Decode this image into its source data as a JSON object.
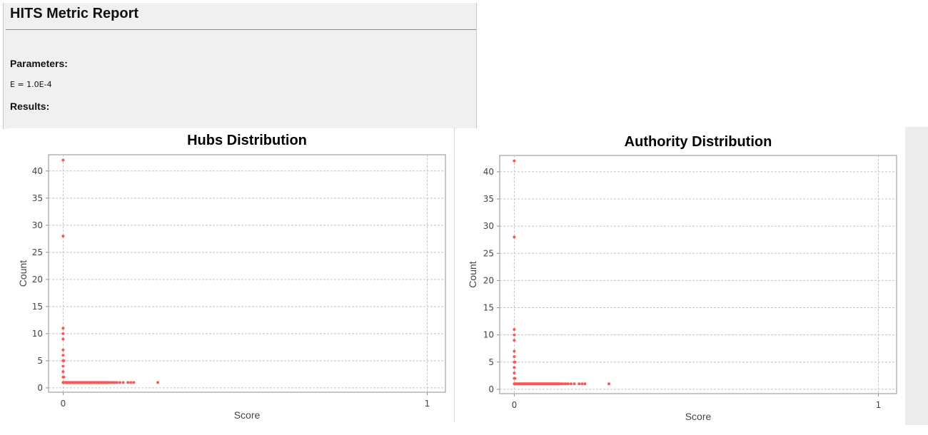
{
  "report": {
    "title": "HITS Metric Report",
    "parameters_heading": "Parameters:",
    "parameter_line": "E = 1.0E-4",
    "results_heading": "Results:"
  },
  "colors": {
    "point": "#ff5555",
    "grid": "#c4c4c4",
    "plot_border": "#8f8f8f",
    "panel_bg": "#f0f0f0"
  },
  "chart_data": [
    {
      "type": "scatter",
      "title": "Hubs Distribution",
      "xlabel": "Score",
      "ylabel": "Count",
      "xlim": [
        -0.04,
        1.05
      ],
      "ylim": [
        -0.8,
        43
      ],
      "xticks": [
        0,
        1
      ],
      "yticks": [
        0,
        5,
        10,
        15,
        20,
        25,
        30,
        35,
        40
      ],
      "grid": true,
      "points": [
        {
          "x": 0.0,
          "y": 42
        },
        {
          "x": 0.0,
          "y": 28
        },
        {
          "x": 0.0,
          "y": 11
        },
        {
          "x": 0.0,
          "y": 10
        },
        {
          "x": 0.0,
          "y": 9
        },
        {
          "x": 0.0,
          "y": 7
        },
        {
          "x": 0.0,
          "y": 6
        },
        {
          "x": 0.0,
          "y": 5
        },
        {
          "x": 0.002,
          "y": 5
        },
        {
          "x": 0.0,
          "y": 4
        },
        {
          "x": 0.0,
          "y": 3
        },
        {
          "x": 0.0,
          "y": 2
        },
        {
          "x": 0.002,
          "y": 2
        },
        {
          "x": 0.0,
          "y": 1
        },
        {
          "x": 0.002,
          "y": 1
        },
        {
          "x": 0.004,
          "y": 1
        },
        {
          "x": 0.006,
          "y": 1
        },
        {
          "x": 0.008,
          "y": 1
        },
        {
          "x": 0.01,
          "y": 1
        },
        {
          "x": 0.012,
          "y": 1
        },
        {
          "x": 0.014,
          "y": 1
        },
        {
          "x": 0.016,
          "y": 1
        },
        {
          "x": 0.018,
          "y": 1
        },
        {
          "x": 0.02,
          "y": 1
        },
        {
          "x": 0.022,
          "y": 1
        },
        {
          "x": 0.024,
          "y": 1
        },
        {
          "x": 0.026,
          "y": 1
        },
        {
          "x": 0.028,
          "y": 1
        },
        {
          "x": 0.03,
          "y": 1
        },
        {
          "x": 0.032,
          "y": 1
        },
        {
          "x": 0.034,
          "y": 1
        },
        {
          "x": 0.036,
          "y": 1
        },
        {
          "x": 0.038,
          "y": 1
        },
        {
          "x": 0.04,
          "y": 1
        },
        {
          "x": 0.042,
          "y": 1
        },
        {
          "x": 0.044,
          "y": 1
        },
        {
          "x": 0.046,
          "y": 1
        },
        {
          "x": 0.048,
          "y": 1
        },
        {
          "x": 0.05,
          "y": 1
        },
        {
          "x": 0.052,
          "y": 1
        },
        {
          "x": 0.054,
          "y": 1
        },
        {
          "x": 0.056,
          "y": 1
        },
        {
          "x": 0.058,
          "y": 1
        },
        {
          "x": 0.06,
          "y": 1
        },
        {
          "x": 0.062,
          "y": 1
        },
        {
          "x": 0.064,
          "y": 1
        },
        {
          "x": 0.066,
          "y": 1
        },
        {
          "x": 0.068,
          "y": 1
        },
        {
          "x": 0.07,
          "y": 1
        },
        {
          "x": 0.072,
          "y": 1
        },
        {
          "x": 0.074,
          "y": 1
        },
        {
          "x": 0.076,
          "y": 1
        },
        {
          "x": 0.078,
          "y": 1
        },
        {
          "x": 0.08,
          "y": 1
        },
        {
          "x": 0.082,
          "y": 1
        },
        {
          "x": 0.084,
          "y": 1
        },
        {
          "x": 0.086,
          "y": 1
        },
        {
          "x": 0.088,
          "y": 1
        },
        {
          "x": 0.09,
          "y": 1
        },
        {
          "x": 0.092,
          "y": 1
        },
        {
          "x": 0.094,
          "y": 1
        },
        {
          "x": 0.096,
          "y": 1
        },
        {
          "x": 0.098,
          "y": 1
        },
        {
          "x": 0.1,
          "y": 1
        },
        {
          "x": 0.102,
          "y": 1
        },
        {
          "x": 0.104,
          "y": 1
        },
        {
          "x": 0.106,
          "y": 1
        },
        {
          "x": 0.108,
          "y": 1
        },
        {
          "x": 0.11,
          "y": 1
        },
        {
          "x": 0.112,
          "y": 1
        },
        {
          "x": 0.114,
          "y": 1
        },
        {
          "x": 0.116,
          "y": 1
        },
        {
          "x": 0.118,
          "y": 1
        },
        {
          "x": 0.12,
          "y": 1
        },
        {
          "x": 0.122,
          "y": 1
        },
        {
          "x": 0.124,
          "y": 1
        },
        {
          "x": 0.128,
          "y": 1
        },
        {
          "x": 0.132,
          "y": 1
        },
        {
          "x": 0.138,
          "y": 1
        },
        {
          "x": 0.142,
          "y": 1
        },
        {
          "x": 0.148,
          "y": 1
        },
        {
          "x": 0.156,
          "y": 1
        },
        {
          "x": 0.165,
          "y": 1
        },
        {
          "x": 0.178,
          "y": 1
        },
        {
          "x": 0.186,
          "y": 1
        },
        {
          "x": 0.194,
          "y": 1
        },
        {
          "x": 0.26,
          "y": 1
        }
      ]
    },
    {
      "type": "scatter",
      "title": "Authority Distribution",
      "xlabel": "Score",
      "ylabel": "Count",
      "xlim": [
        -0.04,
        1.05
      ],
      "ylim": [
        -0.8,
        43
      ],
      "xticks": [
        0,
        1
      ],
      "yticks": [
        0,
        5,
        10,
        15,
        20,
        25,
        30,
        35,
        40
      ],
      "grid": true,
      "points": [
        {
          "x": 0.0,
          "y": 42
        },
        {
          "x": 0.0,
          "y": 28
        },
        {
          "x": 0.0,
          "y": 11
        },
        {
          "x": 0.0,
          "y": 10
        },
        {
          "x": 0.0,
          "y": 9
        },
        {
          "x": 0.0,
          "y": 7
        },
        {
          "x": 0.0,
          "y": 6
        },
        {
          "x": 0.0,
          "y": 5
        },
        {
          "x": 0.002,
          "y": 5
        },
        {
          "x": 0.0,
          "y": 4
        },
        {
          "x": 0.0,
          "y": 3
        },
        {
          "x": 0.0,
          "y": 2
        },
        {
          "x": 0.002,
          "y": 2
        },
        {
          "x": 0.0,
          "y": 1
        },
        {
          "x": 0.002,
          "y": 1
        },
        {
          "x": 0.004,
          "y": 1
        },
        {
          "x": 0.006,
          "y": 1
        },
        {
          "x": 0.008,
          "y": 1
        },
        {
          "x": 0.01,
          "y": 1
        },
        {
          "x": 0.012,
          "y": 1
        },
        {
          "x": 0.014,
          "y": 1
        },
        {
          "x": 0.016,
          "y": 1
        },
        {
          "x": 0.018,
          "y": 1
        },
        {
          "x": 0.02,
          "y": 1
        },
        {
          "x": 0.022,
          "y": 1
        },
        {
          "x": 0.024,
          "y": 1
        },
        {
          "x": 0.026,
          "y": 1
        },
        {
          "x": 0.028,
          "y": 1
        },
        {
          "x": 0.03,
          "y": 1
        },
        {
          "x": 0.032,
          "y": 1
        },
        {
          "x": 0.034,
          "y": 1
        },
        {
          "x": 0.036,
          "y": 1
        },
        {
          "x": 0.038,
          "y": 1
        },
        {
          "x": 0.04,
          "y": 1
        },
        {
          "x": 0.042,
          "y": 1
        },
        {
          "x": 0.044,
          "y": 1
        },
        {
          "x": 0.046,
          "y": 1
        },
        {
          "x": 0.048,
          "y": 1
        },
        {
          "x": 0.05,
          "y": 1
        },
        {
          "x": 0.052,
          "y": 1
        },
        {
          "x": 0.054,
          "y": 1
        },
        {
          "x": 0.056,
          "y": 1
        },
        {
          "x": 0.058,
          "y": 1
        },
        {
          "x": 0.06,
          "y": 1
        },
        {
          "x": 0.062,
          "y": 1
        },
        {
          "x": 0.064,
          "y": 1
        },
        {
          "x": 0.066,
          "y": 1
        },
        {
          "x": 0.068,
          "y": 1
        },
        {
          "x": 0.07,
          "y": 1
        },
        {
          "x": 0.072,
          "y": 1
        },
        {
          "x": 0.074,
          "y": 1
        },
        {
          "x": 0.076,
          "y": 1
        },
        {
          "x": 0.078,
          "y": 1
        },
        {
          "x": 0.08,
          "y": 1
        },
        {
          "x": 0.082,
          "y": 1
        },
        {
          "x": 0.084,
          "y": 1
        },
        {
          "x": 0.086,
          "y": 1
        },
        {
          "x": 0.088,
          "y": 1
        },
        {
          "x": 0.09,
          "y": 1
        },
        {
          "x": 0.092,
          "y": 1
        },
        {
          "x": 0.094,
          "y": 1
        },
        {
          "x": 0.096,
          "y": 1
        },
        {
          "x": 0.098,
          "y": 1
        },
        {
          "x": 0.1,
          "y": 1
        },
        {
          "x": 0.102,
          "y": 1
        },
        {
          "x": 0.104,
          "y": 1
        },
        {
          "x": 0.106,
          "y": 1
        },
        {
          "x": 0.108,
          "y": 1
        },
        {
          "x": 0.11,
          "y": 1
        },
        {
          "x": 0.112,
          "y": 1
        },
        {
          "x": 0.114,
          "y": 1
        },
        {
          "x": 0.116,
          "y": 1
        },
        {
          "x": 0.118,
          "y": 1
        },
        {
          "x": 0.12,
          "y": 1
        },
        {
          "x": 0.122,
          "y": 1
        },
        {
          "x": 0.124,
          "y": 1
        },
        {
          "x": 0.128,
          "y": 1
        },
        {
          "x": 0.132,
          "y": 1
        },
        {
          "x": 0.138,
          "y": 1
        },
        {
          "x": 0.142,
          "y": 1
        },
        {
          "x": 0.148,
          "y": 1
        },
        {
          "x": 0.156,
          "y": 1
        },
        {
          "x": 0.165,
          "y": 1
        },
        {
          "x": 0.178,
          "y": 1
        },
        {
          "x": 0.186,
          "y": 1
        },
        {
          "x": 0.194,
          "y": 1
        },
        {
          "x": 0.26,
          "y": 1
        }
      ]
    }
  ]
}
